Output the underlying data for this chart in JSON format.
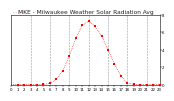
{
  "title": "MKE - Milwaukee Weather Solar Radiation Avg",
  "legend_label": "- - - - -",
  "hours": [
    0,
    1,
    2,
    3,
    4,
    5,
    6,
    7,
    8,
    9,
    10,
    11,
    12,
    13,
    14,
    15,
    16,
    17,
    18,
    19,
    20,
    21,
    22,
    23
  ],
  "solar": [
    0,
    0,
    0,
    0,
    0,
    2,
    15,
    60,
    160,
    330,
    530,
    680,
    730,
    670,
    560,
    400,
    240,
    100,
    20,
    3,
    0,
    0,
    0,
    0
  ],
  "dot_color": "#ff0000",
  "line_color": "#ff0000",
  "bg_color": "#ffffff",
  "grid_color": "#999999",
  "border_color": "#000000",
  "ylim": [
    0,
    800
  ],
  "xlim": [
    0,
    23
  ],
  "ytick_values": [
    0,
    200,
    400,
    600,
    800
  ],
  "ytick_labels": [
    "0",
    "2",
    "4",
    "6",
    "8"
  ],
  "xtick_values": [
    0,
    1,
    2,
    3,
    4,
    5,
    6,
    7,
    8,
    9,
    10,
    11,
    12,
    13,
    14,
    15,
    16,
    17,
    18,
    19,
    20,
    21,
    22,
    23
  ],
  "xtick_labels": [
    "0",
    "1",
    "2",
    "3",
    "4",
    "5",
    "6",
    "7",
    "8",
    "9",
    "10",
    "11",
    "12",
    "13",
    "14",
    "15",
    "16",
    "17",
    "18",
    "19",
    "20",
    "21",
    "22",
    "23"
  ],
  "vgrid_positions": [
    3,
    6,
    9,
    12,
    15,
    18,
    21
  ],
  "title_fontsize": 4.2,
  "tick_fontsize": 2.8,
  "dot_size": 1.8,
  "line_width": 0.5,
  "marker_style": "s"
}
